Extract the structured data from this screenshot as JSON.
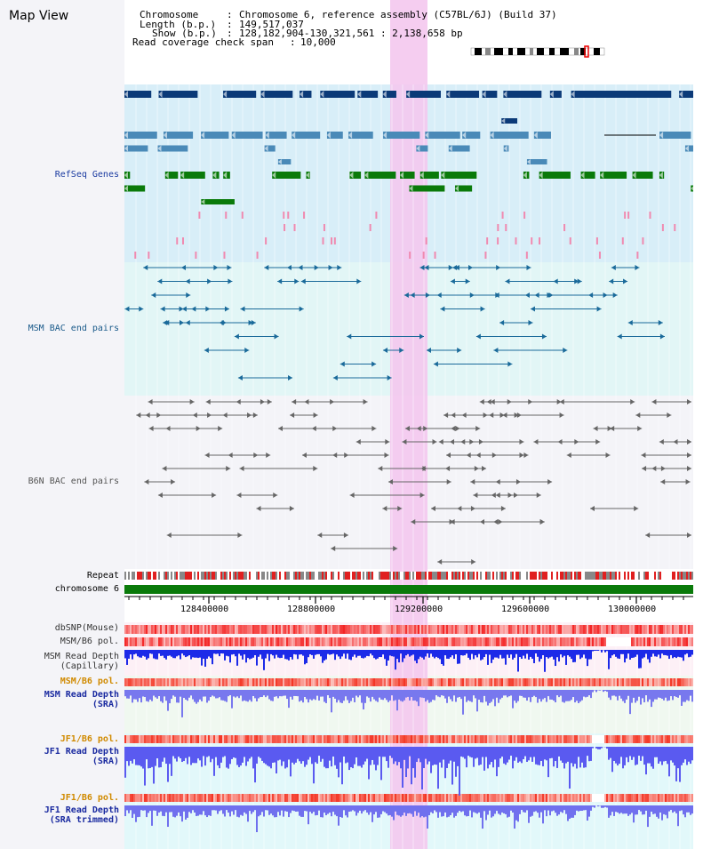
{
  "title": "Map View",
  "info": {
    "chromosome_label": "Chromosome",
    "chromosome_value": "Chromosome 6, reference assembly (C57BL/6J) (Build 37)",
    "length_label": "Length (b.p.)",
    "length_value": "149,517,037",
    "show_label": "Show (b.p.)",
    "show_value": "128,182,904-130,321,561 : 2,138,658 bp",
    "coverage_label": "Read coverage check span",
    "coverage_value": "10,000"
  },
  "tracks": {
    "refseq": "RefSeq Genes",
    "msm_bac": "MSM BAC end pairs",
    "b6n_bac": "B6N BAC end pairs",
    "repeat": "Repeat",
    "chromosome": "chromosome 6",
    "dbsnp": "dbSNP(Mouse)",
    "msm_b6_pol_1": "MSM/B6 pol.",
    "msm_read_depth_cap": "MSM Read Depth\n(Capillary)",
    "msm_b6_pol_2": "MSM/B6 pol.",
    "msm_read_depth_sra": "MSM Read Depth\n(SRA)",
    "jf1_b6_pol_1": "JF1/B6 pol.",
    "jf1_read_depth_sra": "JF1 Read Depth\n(SRA)",
    "jf1_b6_pol_2": "JF1/B6 pol.",
    "jf1_read_depth_trim": "JF1 Read Depth\n(SRA trimmed)"
  },
  "axis": {
    "ticks": [
      "128400000",
      "128800000",
      "129200000",
      "129600000",
      "130000000"
    ]
  },
  "colors": {
    "refseq_dark": "#0b3a78",
    "refseq_mid": "#4a8ab8",
    "refseq_green": "#0a7a0a",
    "msm_line": "#1a6a9a",
    "b6n_line": "#666666",
    "highlight": "#f4c8ee"
  }
}
